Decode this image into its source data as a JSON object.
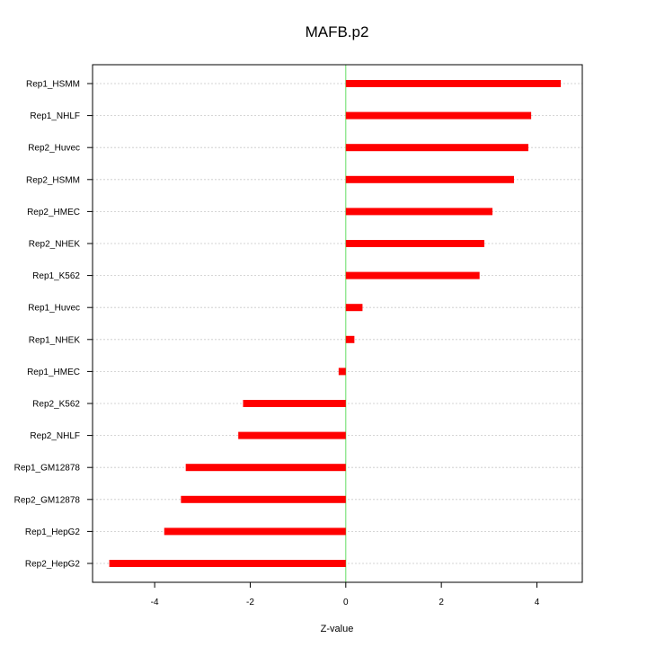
{
  "chart_data": {
    "type": "bar",
    "orientation": "horizontal",
    "title": "MAFB.p2",
    "xlabel": "Z-value",
    "ylabel": "",
    "xlim": [
      -5.3,
      4.95
    ],
    "xticks": [
      -4,
      -2,
      0,
      2,
      4
    ],
    "xtick_labels": [
      "-4",
      "-2",
      "0",
      "2",
      "4"
    ],
    "categories": [
      "Rep1_HSMM",
      "Rep1_NHLF",
      "Rep2_Huvec",
      "Rep2_HSMM",
      "Rep2_HMEC",
      "Rep2_NHEK",
      "Rep1_K562",
      "Rep1_Huvec",
      "Rep1_NHEK",
      "Rep1_HMEC",
      "Rep2_K562",
      "Rep2_NHLF",
      "Rep1_GM12878",
      "Rep2_GM12878",
      "Rep1_HepG2",
      "Rep2_HepG2"
    ],
    "values": [
      4.5,
      3.88,
      3.82,
      3.52,
      3.07,
      2.9,
      2.8,
      0.35,
      0.18,
      -0.15,
      -2.15,
      -2.25,
      -3.35,
      -3.45,
      -3.8,
      -4.95
    ],
    "bar_color": "#ff0000",
    "zero_line_color": "#66dd66",
    "grid": "horizontal dotted",
    "legend": "none"
  }
}
